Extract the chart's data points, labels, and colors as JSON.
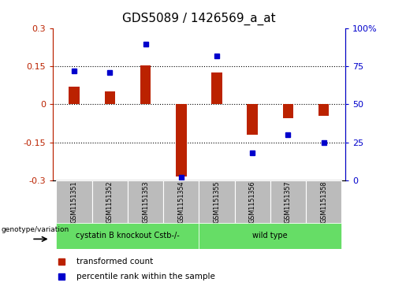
{
  "title": "GDS5089 / 1426569_a_at",
  "samples": [
    "GSM1151351",
    "GSM1151352",
    "GSM1151353",
    "GSM1151354",
    "GSM1151355",
    "GSM1151356",
    "GSM1151357",
    "GSM1151358"
  ],
  "transformed_count": [
    0.07,
    0.05,
    0.155,
    -0.285,
    0.125,
    -0.12,
    -0.055,
    -0.045
  ],
  "percentile_rank": [
    72,
    71,
    90,
    2,
    82,
    18,
    30,
    25
  ],
  "group1_label": "cystatin B knockout Cstb-/-",
  "group2_label": "wild type",
  "group1_count": 4,
  "group2_count": 4,
  "genotype_label": "genotype/variation",
  "legend_red": "transformed count",
  "legend_blue": "percentile rank within the sample",
  "ylim_left": [
    -0.3,
    0.3
  ],
  "ylim_right": [
    0,
    100
  ],
  "yticks_left": [
    -0.3,
    -0.15,
    0.0,
    0.15,
    0.3
  ],
  "yticks_right": [
    0,
    25,
    50,
    75,
    100
  ],
  "hlines": [
    -0.15,
    0.0,
    0.15
  ],
  "red_color": "#BB2200",
  "blue_color": "#0000CC",
  "green_color": "#66DD66",
  "gray_color": "#BBBBBB",
  "bar_width": 0.3,
  "title_fontsize": 11,
  "axis_fontsize": 8
}
